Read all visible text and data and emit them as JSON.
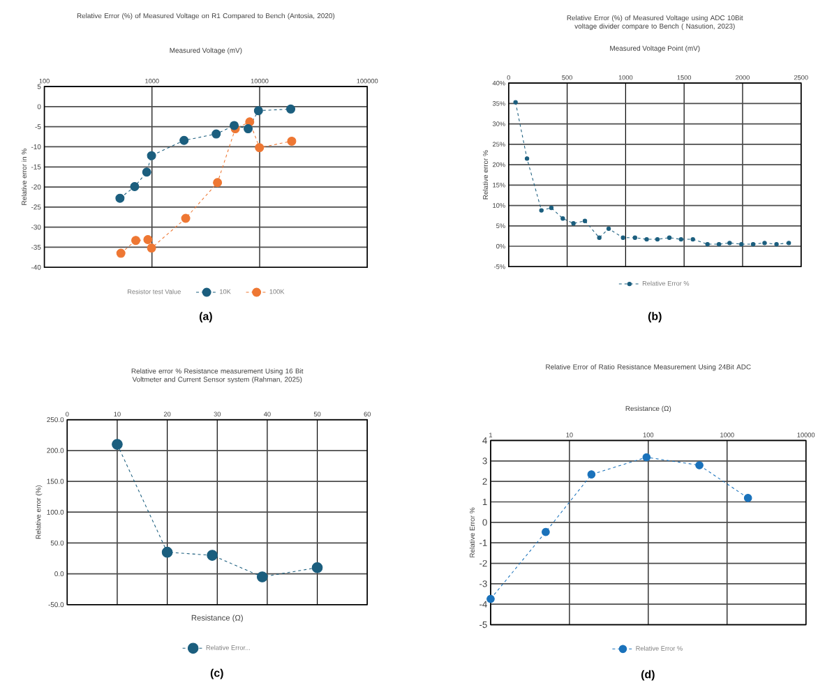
{
  "chart_data": [
    {
      "type": "line",
      "title": "Relative Error (%) of Measured Voltage on R1 Compared to Bench (Antosia, 2020)",
      "xlabel": "Measured Voltage (mV)",
      "ylabel": "Relative error in %",
      "legend_title": "Resistor test Value",
      "log": "x",
      "xlim": [
        100,
        100000
      ],
      "xticks": [
        100,
        1000,
        10000,
        100000
      ],
      "ylim": [
        -40,
        5
      ],
      "yticks": [
        -40,
        -35,
        -30,
        -25,
        -20,
        -15,
        -10,
        -5,
        0,
        5
      ],
      "grid": true,
      "legend": "bottom",
      "marker": "circle",
      "line_style": "dashed",
      "annotations": [
        "(a)"
      ],
      "series": [
        {
          "name": "10K",
          "color": "#1b5e7e",
          "x": [
            504,
            690,
            893,
            990,
            1985,
            3950,
            5800,
            7820,
            9750,
            19450
          ],
          "values": [
            -22.8,
            -19.9,
            -16.3,
            -12.2,
            -8.4,
            -6.8,
            -4.7,
            -5.5,
            -1.0,
            -0.6
          ]
        },
        {
          "name": "100K",
          "color": "#ee7733",
          "x": [
            514,
            707,
            916,
            990,
            2056,
            4060,
            5940,
            8090,
            9960,
            19860
          ],
          "values": [
            -36.5,
            -33.3,
            -33.1,
            -35.2,
            -27.8,
            -18.9,
            -5.5,
            -3.8,
            -10.2,
            -8.6
          ]
        }
      ]
    },
    {
      "type": "line",
      "title": "Relative Error (%) of Measured Voltage using ADC 10Bit voltage divider compare to Bench ( Nasution, 2023)",
      "xlabel": "Measured Voltage Point (mV)",
      "ylabel": "Relative error %",
      "xlim": [
        0,
        2500
      ],
      "xticks": [
        0,
        500,
        1000,
        1500,
        2000,
        2500
      ],
      "ylim": [
        -5,
        40
      ],
      "yticks": [
        {
          "value": -5,
          "label": "-5%"
        },
        {
          "value": 0,
          "label": "0%"
        },
        {
          "value": 5,
          "label": "5%"
        },
        {
          "value": 10,
          "label": "10%"
        },
        {
          "value": 15,
          "label": "15%"
        },
        {
          "value": 20,
          "label": "20%"
        },
        {
          "value": 25,
          "label": "25%"
        },
        {
          "value": 30,
          "label": "30%"
        },
        {
          "value": 35,
          "label": "35%"
        },
        {
          "value": 40,
          "label": "40%"
        }
      ],
      "grid": true,
      "legend": "bottom",
      "marker": "circle",
      "line_style": "dashed",
      "annotations": [
        "(b)"
      ],
      "series": [
        {
          "name": "Relative Error %",
          "color": "#1b5e7e",
          "x": [
            59,
            157,
            280,
            365,
            463,
            554,
            652,
            775,
            855,
            978,
            1080,
            1180,
            1272,
            1374,
            1474,
            1575,
            1700,
            1798,
            1889,
            1990,
            2090,
            2188,
            2290,
            2395
          ],
          "values": [
            35.3,
            21.5,
            8.8,
            9.4,
            6.8,
            5.6,
            6.2,
            2.1,
            4.3,
            2.1,
            2.1,
            1.7,
            1.7,
            2.1,
            1.7,
            1.7,
            0.5,
            0.5,
            0.8,
            0.5,
            0.5,
            0.8,
            0.5,
            0.8
          ]
        }
      ]
    },
    {
      "type": "line",
      "title": "Relative error % Resistance measurement Using 16 Bit Voltmeter and Current Sensor system (Rahman, 2025)",
      "xlabel": "Resistance (Ω)",
      "ylabel": "Relative error (%)",
      "xlim": [
        0,
        60
      ],
      "xticks": [
        0,
        10,
        20,
        30,
        40,
        50,
        60
      ],
      "ylim": [
        -50,
        250
      ],
      "yticks": [
        {
          "value": -50,
          "label": "-50.0"
        },
        {
          "value": 0,
          "label": "0.0"
        },
        {
          "value": 50,
          "label": "50.0"
        },
        {
          "value": 100,
          "label": "100.0"
        },
        {
          "value": 150,
          "label": "150.0"
        },
        {
          "value": 200,
          "label": "200.0"
        },
        {
          "value": 250,
          "label": "250.0"
        }
      ],
      "grid": true,
      "legend": "bottom",
      "marker": "circle",
      "line_style": "dashed",
      "annotations": [
        "(c)"
      ],
      "series": [
        {
          "name": "Relative Error...",
          "color": "#1b5e7e",
          "x": [
            10,
            20,
            29,
            39,
            50
          ],
          "values": [
            210,
            35,
            30,
            -5,
            10
          ]
        }
      ]
    },
    {
      "type": "line",
      "title": "Relative Error of Ratio Resistance Measurement Using 24Bit ADC",
      "xlabel": "Resistance (Ω)",
      "ylabel": "Relative Error %",
      "log": "x",
      "xlim": [
        1,
        10000
      ],
      "xticks": [
        1,
        10,
        100,
        1000,
        10000
      ],
      "ylim": [
        -5,
        4
      ],
      "yticks": [
        -5,
        -4,
        -3,
        -2,
        -1,
        0,
        1,
        2,
        3,
        4
      ],
      "grid": true,
      "legend": "bottom",
      "marker": "circle",
      "line_style": "dashed",
      "annotations": [
        "(d)"
      ],
      "series": [
        {
          "name": "Relative Error %",
          "color": "#1a72bb",
          "x": [
            1,
            5,
            19,
            95,
            445,
            1840
          ],
          "values": [
            -3.74,
            -0.47,
            2.34,
            3.18,
            2.79,
            1.19
          ]
        }
      ]
    }
  ]
}
